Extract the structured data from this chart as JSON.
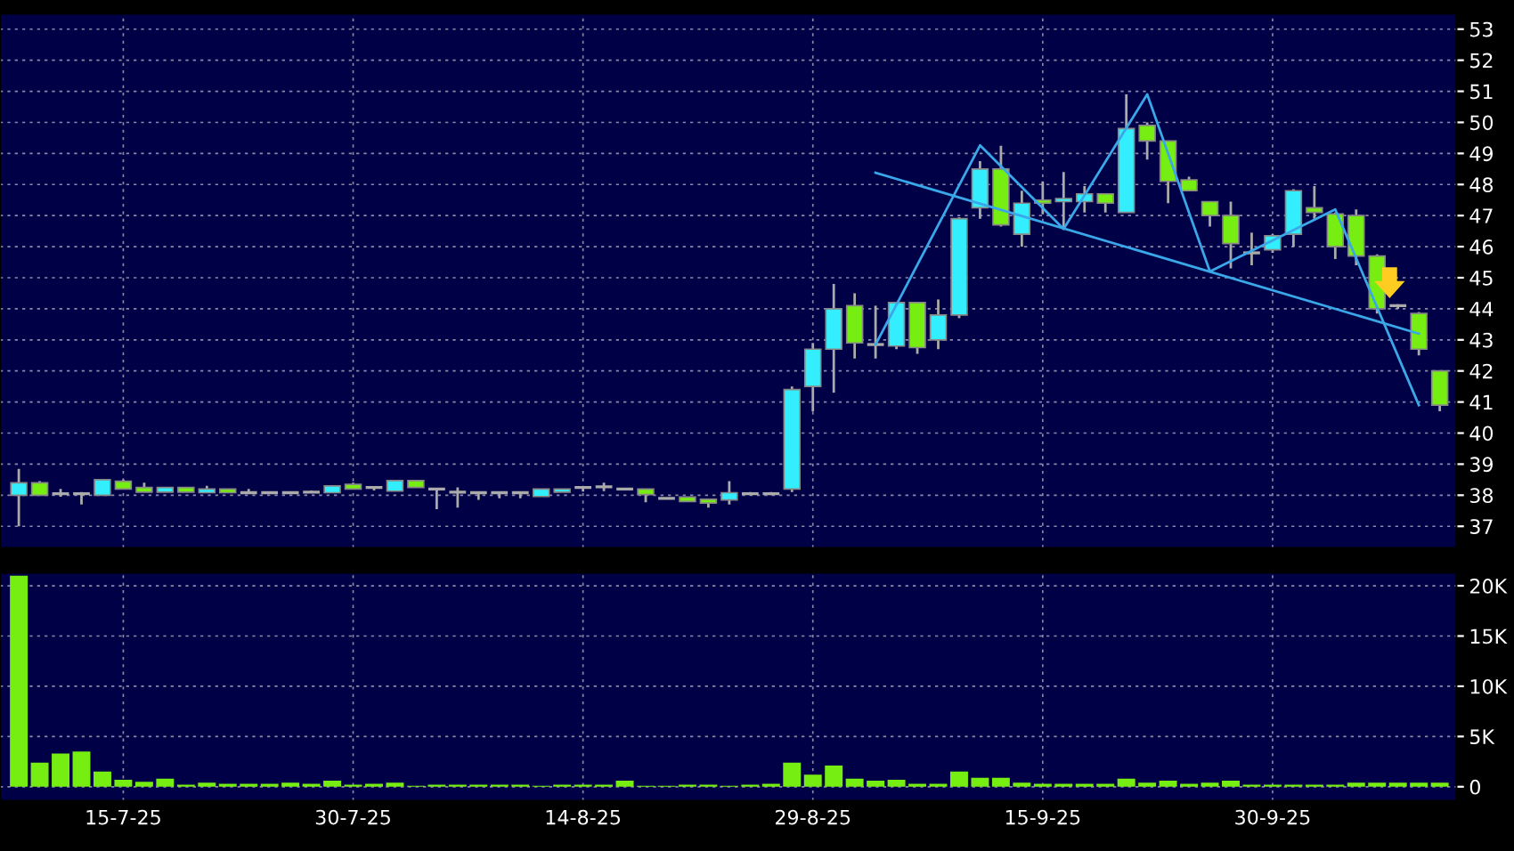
{
  "chart_data": [
    {
      "type": "candlestick",
      "tick_labels": "y",
      "grid": true,
      "categories": [
        null,
        null,
        null,
        null,
        null,
        null,
        null,
        null,
        null,
        null,
        null,
        null,
        null,
        null,
        null,
        null,
        null,
        null,
        null,
        null,
        null,
        null,
        null,
        null,
        null,
        null,
        null,
        null,
        null,
        null,
        null,
        null,
        null,
        null,
        null,
        null,
        null,
        null,
        null,
        null,
        null,
        null,
        null,
        null,
        null,
        null,
        null,
        null,
        null,
        null,
        null,
        null,
        null,
        null,
        null,
        null,
        null,
        null,
        null,
        null,
        null,
        null,
        null,
        null,
        null,
        null,
        null,
        null,
        null
      ],
      "ohlc": [
        [
          38.0,
          38.85,
          37.0,
          38.4
        ],
        [
          38.4,
          38.45,
          38.0,
          38.0
        ],
        [
          38.05,
          38.2,
          37.95,
          38.05
        ],
        [
          38.05,
          38.1,
          37.7,
          38.05
        ],
        [
          38.0,
          38.5,
          38.0,
          38.5
        ],
        [
          38.45,
          38.5,
          38.2,
          38.2
        ],
        [
          38.25,
          38.4,
          38.1,
          38.1
        ],
        [
          38.1,
          38.25,
          38.1,
          38.25
        ],
        [
          38.25,
          38.25,
          38.1,
          38.1
        ],
        [
          38.08,
          38.3,
          38.08,
          38.2
        ],
        [
          38.2,
          38.2,
          38.08,
          38.08
        ],
        [
          38.08,
          38.2,
          38.08,
          38.08
        ],
        [
          38.08,
          38.08,
          38.08,
          38.08
        ],
        [
          38.08,
          38.08,
          38.08,
          38.08
        ],
        [
          38.1,
          38.15,
          38.1,
          38.1
        ],
        [
          38.08,
          38.3,
          38.08,
          38.3
        ],
        [
          38.35,
          38.4,
          38.2,
          38.2
        ],
        [
          38.25,
          38.25,
          38.15,
          38.25
        ],
        [
          38.13,
          38.47,
          38.13,
          38.47
        ],
        [
          38.47,
          38.47,
          38.25,
          38.25
        ],
        [
          38.2,
          38.2,
          37.55,
          38.2
        ],
        [
          38.1,
          38.25,
          37.6,
          38.1
        ],
        [
          38.08,
          38.08,
          37.85,
          38.08
        ],
        [
          38.08,
          38.08,
          37.9,
          38.08
        ],
        [
          38.08,
          38.08,
          37.9,
          38.08
        ],
        [
          37.96,
          38.2,
          37.96,
          38.2
        ],
        [
          38.1,
          38.2,
          38.1,
          38.2
        ],
        [
          38.25,
          38.25,
          38.12,
          38.25
        ],
        [
          38.27,
          38.4,
          38.13,
          38.27
        ],
        [
          38.2,
          38.2,
          38.2,
          38.2
        ],
        [
          38.2,
          38.2,
          37.77,
          38.02
        ],
        [
          37.9,
          37.9,
          37.9,
          37.9
        ],
        [
          37.94,
          37.94,
          37.8,
          37.8
        ],
        [
          37.87,
          37.87,
          37.6,
          37.75
        ],
        [
          37.85,
          38.45,
          37.7,
          38.08
        ],
        [
          38.05,
          38.1,
          38.0,
          38.05
        ],
        [
          38.05,
          38.1,
          38.0,
          38.05
        ],
        [
          38.2,
          41.5,
          38.1,
          41.4
        ],
        [
          41.5,
          42.9,
          40.7,
          42.7
        ],
        [
          42.7,
          44.8,
          41.3,
          44.0
        ],
        [
          44.1,
          44.5,
          42.4,
          42.9
        ],
        [
          42.85,
          44.1,
          42.4,
          42.85
        ],
        [
          42.8,
          44.2,
          42.7,
          44.2
        ],
        [
          44.2,
          44.2,
          42.55,
          42.75
        ],
        [
          43.0,
          44.3,
          42.7,
          43.8
        ],
        [
          43.8,
          46.95,
          43.7,
          46.9
        ],
        [
          47.25,
          48.75,
          46.9,
          48.5
        ],
        [
          48.5,
          49.25,
          46.65,
          46.7
        ],
        [
          46.4,
          47.8,
          46.0,
          47.4
        ],
        [
          47.5,
          48.1,
          47.05,
          47.4
        ],
        [
          47.45,
          48.4,
          46.6,
          47.55
        ],
        [
          47.45,
          47.95,
          47.1,
          47.7
        ],
        [
          47.7,
          47.7,
          47.1,
          47.4
        ],
        [
          47.1,
          50.9,
          47.1,
          49.8
        ],
        [
          49.9,
          50.0,
          48.8,
          49.4
        ],
        [
          49.4,
          49.4,
          47.4,
          48.1
        ],
        [
          48.15,
          48.25,
          47.8,
          47.8
        ],
        [
          47.45,
          47.45,
          46.65,
          47.0
        ],
        [
          47.0,
          47.45,
          45.3,
          46.1
        ],
        [
          45.8,
          46.45,
          45.4,
          45.8
        ],
        [
          45.9,
          46.4,
          45.8,
          46.35
        ],
        [
          46.4,
          47.85,
          46.0,
          47.8
        ],
        [
          47.25,
          47.95,
          46.9,
          47.1
        ],
        [
          47.05,
          47.1,
          45.6,
          46.0
        ],
        [
          47.0,
          47.2,
          45.4,
          45.7
        ],
        [
          45.7,
          45.75,
          43.85,
          44.0
        ],
        [
          44.1,
          44.15,
          44.0,
          44.1
        ],
        [
          43.85,
          43.9,
          42.5,
          42.7
        ],
        [
          42.0,
          42.0,
          40.7,
          40.9
        ]
      ],
      "colors": [
        "#33eeff",
        "#77ee11",
        "#aaaaaa",
        "#aaaaaa",
        "#33eeff",
        "#77ee11",
        "#77ee11",
        "#33eeff",
        "#77ee11",
        "#33eeff",
        "#77ee11",
        "#aaaaaa",
        "#aaaaaa",
        "#aaaaaa",
        "#aaaaaa",
        "#33eeff",
        "#77ee11",
        "#aaaaaa",
        "#33eeff",
        "#77ee11",
        "#aaaaaa",
        "#aaaaaa",
        "#aaaaaa",
        "#aaaaaa",
        "#aaaaaa",
        "#33eeff",
        "#33eeff",
        "#aaaaaa",
        "#aaaaaa",
        "#aaaaaa",
        "#77ee11",
        "#aaaaaa",
        "#77ee11",
        "#77ee11",
        "#33eeff",
        "#aaaaaa",
        "#aaaaaa",
        "#33eeff",
        "#33eeff",
        "#33eeff",
        "#77ee11",
        "#aaaaaa",
        "#33eeff",
        "#77ee11",
        "#33eeff",
        "#33eeff",
        "#33eeff",
        "#77ee11",
        "#33eeff",
        "#77ee11",
        "#33eeff",
        "#33eeff",
        "#77ee11",
        "#33eeff",
        "#77ee11",
        "#77ee11",
        "#77ee11",
        "#77ee11",
        "#77ee11",
        "#aaaaaa",
        "#33eeff",
        "#33eeff",
        "#77ee11",
        "#77ee11",
        "#77ee11",
        "#77ee11",
        "#aaaaaa",
        "#77ee11",
        "#77ee11"
      ],
      "series": [
        {
          "type": "line",
          "color": "#3aa8e8",
          "values": [
            null,
            null,
            null,
            null,
            null,
            null,
            null,
            null,
            null,
            null,
            null,
            null,
            null,
            null,
            null,
            null,
            null,
            null,
            null,
            null,
            null,
            null,
            null,
            null,
            null,
            null,
            null,
            null,
            null,
            null,
            null,
            null,
            null,
            null,
            null,
            null,
            null,
            null,
            null,
            null,
            null,
            42.85,
            null,
            null,
            null,
            null,
            49.26,
            null,
            null,
            null,
            46.57,
            null,
            null,
            null,
            50.9,
            null,
            null,
            45.2,
            null,
            null,
            null,
            null,
            null,
            47.2,
            null,
            null,
            null,
            40.9,
            null
          ]
        },
        {
          "type": "line",
          "color": "#3aa8e8",
          "values": [
            null,
            null,
            null,
            null,
            null,
            null,
            null,
            null,
            null,
            null,
            null,
            null,
            null,
            null,
            null,
            null,
            null,
            null,
            null,
            null,
            null,
            null,
            null,
            null,
            null,
            null,
            null,
            null,
            null,
            null,
            null,
            null,
            null,
            null,
            null,
            null,
            null,
            null,
            null,
            null,
            null,
            48.38,
            null,
            null,
            null,
            null,
            null,
            null,
            null,
            null,
            null,
            null,
            null,
            null,
            null,
            null,
            null,
            null,
            null,
            null,
            null,
            null,
            null,
            null,
            null,
            null,
            null,
            43.2,
            null
          ]
        }
      ],
      "ylim": [
        36.3,
        53.5
      ],
      "yticks": [
        37,
        38,
        39,
        40,
        41,
        42,
        43,
        44,
        45,
        46,
        47,
        48,
        49,
        50,
        51,
        52,
        53
      ]
    },
    {
      "type": "bar",
      "grid": true,
      "color": "#77ee11",
      "categories": [
        null,
        null,
        null,
        null,
        null,
        "15-7-25",
        null,
        null,
        null,
        null,
        null,
        null,
        null,
        null,
        null,
        null,
        "30-7-25",
        null,
        null,
        null,
        null,
        null,
        null,
        null,
        null,
        null,
        null,
        "14-8-25",
        null,
        null,
        null,
        null,
        null,
        null,
        null,
        null,
        null,
        null,
        "29-8-25",
        null,
        null,
        null,
        null,
        null,
        null,
        null,
        null,
        null,
        null,
        "15-9-25",
        null,
        null,
        null,
        null,
        null,
        null,
        null,
        null,
        null,
        null,
        "30-9-25",
        null,
        null,
        null,
        null,
        null,
        null,
        null,
        null
      ],
      "values": [
        21000,
        2400,
        3300,
        3500,
        1500,
        700,
        500,
        800,
        200,
        400,
        300,
        300,
        300,
        400,
        300,
        600,
        200,
        300,
        400,
        100,
        200,
        200,
        200,
        200,
        200,
        100,
        200,
        200,
        200,
        600,
        100,
        100,
        200,
        200,
        100,
        200,
        300,
        2400,
        1200,
        2100,
        800,
        600,
        700,
        300,
        300,
        1500,
        900,
        900,
        400,
        300,
        300,
        300,
        300,
        800,
        400,
        600,
        300,
        400,
        600,
        200,
        200,
        200,
        200,
        200,
        400,
        400,
        400,
        400,
        400
      ],
      "ylim": [
        -1400,
        21300
      ],
      "yticks": [
        0,
        {
          "value": 5000,
          "label": "5K"
        },
        {
          "value": 10000,
          "label": "10K"
        },
        {
          "value": 15000,
          "label": "15K"
        },
        {
          "value": 20000,
          "label": "20K"
        }
      ]
    }
  ]
}
